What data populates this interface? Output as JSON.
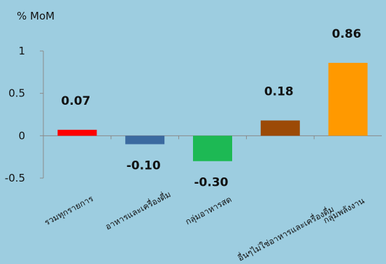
{
  "chart_data": {
    "type": "bar",
    "ylabel": "% MoM",
    "ylim": [
      -0.5,
      1
    ],
    "yticks": [
      {
        "value": 1,
        "label": "1"
      },
      {
        "value": 0.5,
        "label": "0.5"
      },
      {
        "value": 0,
        "label": "0"
      },
      {
        "value": -0.5,
        "label": "-0.5"
      }
    ],
    "grid": false,
    "legend": "none",
    "categories": [
      "รวมทุกรายการ",
      "อาหารและเครื่องดื่ม",
      "กลุ่มอาหารสด",
      "อื่นๆไม่ใช่อาหารและเครื่องดื่ม",
      "กลุ่มพลังงาน"
    ],
    "values": [
      0.07,
      -0.1,
      -0.3,
      0.18,
      0.86
    ],
    "value_labels": [
      "0.07",
      "-0.10",
      "-0.30",
      "0.18",
      "0.86"
    ],
    "colors": [
      "#ff0000",
      "#3b6aa0",
      "#1db954",
      "#9c4a06",
      "#ff9900"
    ]
  }
}
